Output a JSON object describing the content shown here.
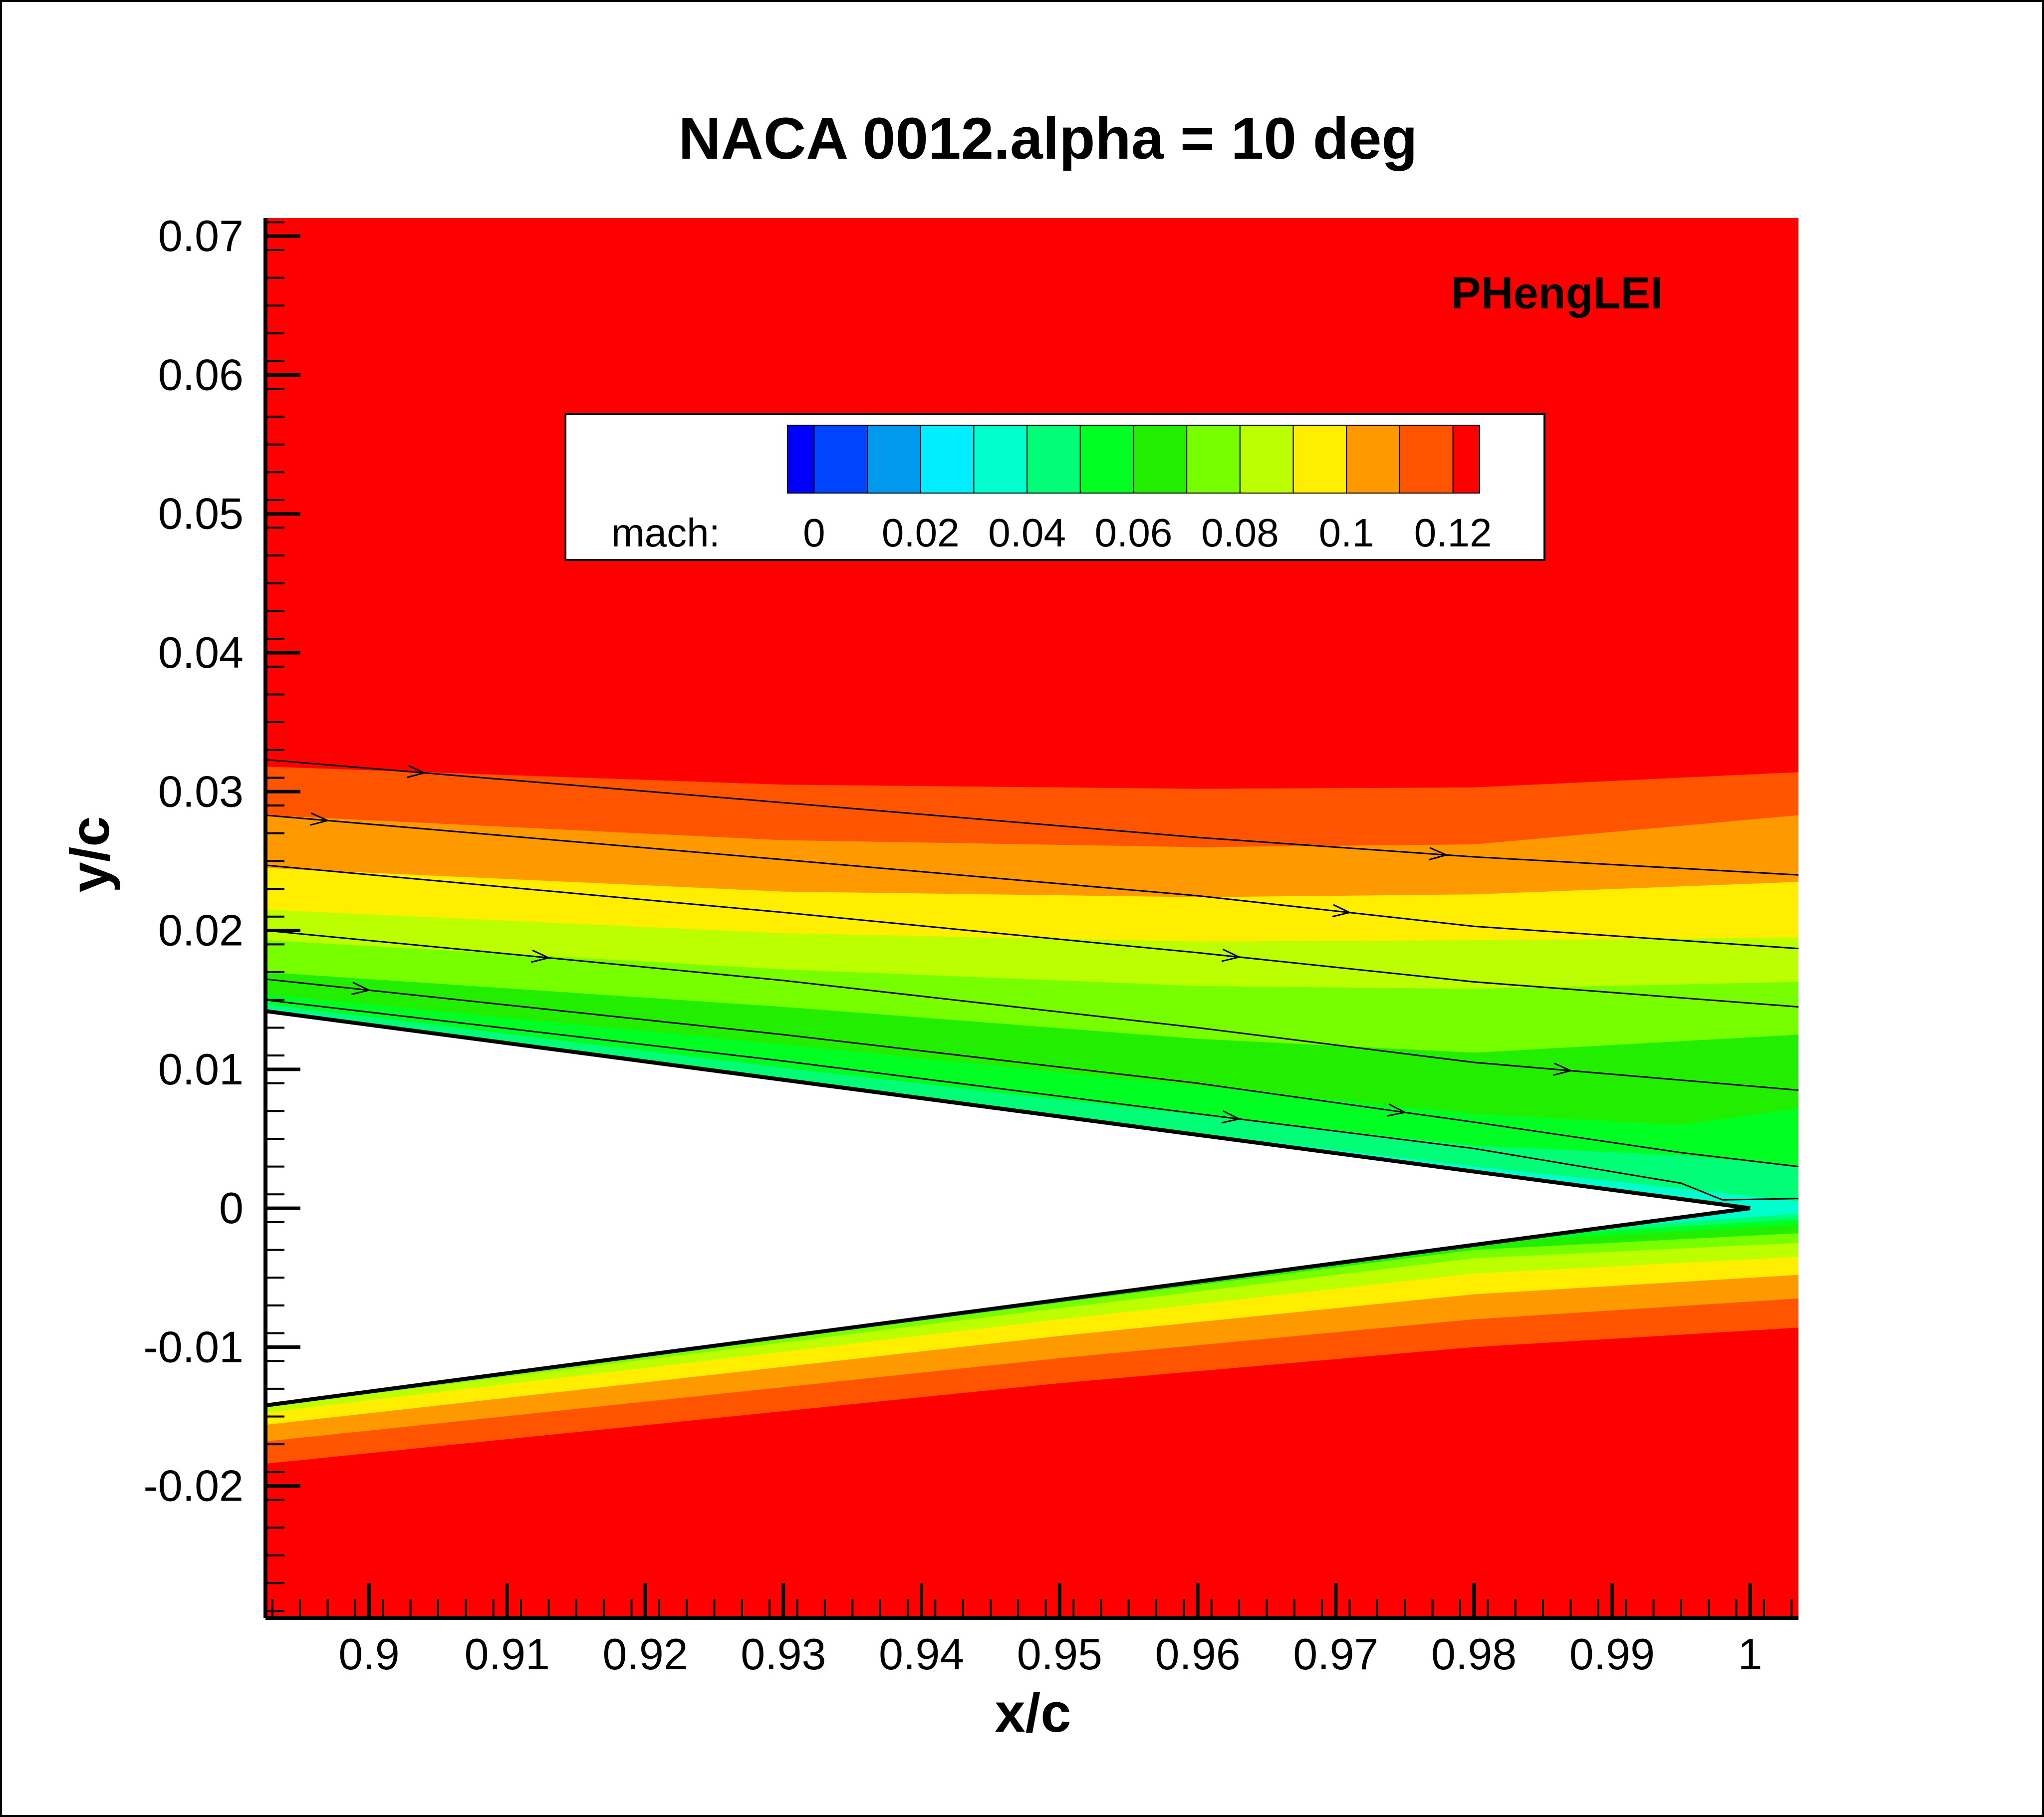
{
  "chart_data": {
    "type": "contour",
    "title": "NACA 0012.alpha = 10 deg",
    "xlabel": "x/c",
    "ylabel": "y/c",
    "xlim": [
      0.8925,
      1.0035
    ],
    "ylim": [
      -0.0295,
      0.0713
    ],
    "x_ticks": [
      {
        "value": 0.9,
        "label": "0.9"
      },
      {
        "value": 0.91,
        "label": "0.91"
      },
      {
        "value": 0.92,
        "label": "0.92"
      },
      {
        "value": 0.93,
        "label": "0.93"
      },
      {
        "value": 0.94,
        "label": "0.94"
      },
      {
        "value": 0.95,
        "label": "0.95"
      },
      {
        "value": 0.96,
        "label": "0.96"
      },
      {
        "value": 0.97,
        "label": "0.97"
      },
      {
        "value": 0.98,
        "label": "0.98"
      },
      {
        "value": 0.99,
        "label": "0.99"
      },
      {
        "value": 1.0,
        "label": "1"
      }
    ],
    "y_ticks": [
      {
        "value": -0.02,
        "label": "-0.02"
      },
      {
        "value": -0.01,
        "label": "-0.01"
      },
      {
        "value": 0.0,
        "label": "0"
      },
      {
        "value": 0.01,
        "label": "0.01"
      },
      {
        "value": 0.02,
        "label": "0.02"
      },
      {
        "value": 0.03,
        "label": "0.03"
      },
      {
        "value": 0.04,
        "label": "0.04"
      },
      {
        "value": 0.05,
        "label": "0.05"
      },
      {
        "value": 0.06,
        "label": "0.06"
      },
      {
        "value": 0.07,
        "label": "0.07"
      }
    ],
    "annotation": "PHengLEI",
    "colorbar": {
      "variable": "mach:",
      "levels": [
        -0.005,
        0.0,
        0.01,
        0.02,
        0.03,
        0.04,
        0.05,
        0.06,
        0.07,
        0.08,
        0.09,
        0.1,
        0.11,
        0.12,
        0.125
      ],
      "colors": [
        "#0000ff",
        "#0044ff",
        "#0099ee",
        "#00eeff",
        "#00ffcc",
        "#00ff77",
        "#00ff22",
        "#22ee00",
        "#77ff00",
        "#bbff00",
        "#ffee00",
        "#ff9900",
        "#ff5500",
        "#ff0000"
      ],
      "labels": [
        {
          "value": 0.0,
          "label": "0"
        },
        {
          "value": 0.02,
          "label": "0.02"
        },
        {
          "value": 0.04,
          "label": "0.04"
        },
        {
          "value": 0.06,
          "label": "0.06"
        },
        {
          "value": 0.08,
          "label": "0.08"
        },
        {
          "value": 0.1,
          "label": "0.1"
        },
        {
          "value": 0.12,
          "label": "0.12"
        }
      ]
    },
    "airfoil": {
      "upper_surface": [
        [
          0.8925,
          0.0142
        ],
        [
          1.0,
          0.0
        ]
      ],
      "lower_surface": [
        [
          0.8925,
          -0.0142
        ],
        [
          1.0,
          0.0
        ]
      ]
    },
    "contour_bands": [
      {
        "color": "#ff5500",
        "upper": [
          [
            0.8925,
            0.0318
          ],
          [
            0.93,
            0.0305
          ],
          [
            0.96,
            0.0302
          ],
          [
            0.98,
            0.0303
          ],
          [
            1.0035,
            0.0314
          ]
        ],
        "lower": [
          [
            0.8925,
            -0.0184
          ],
          [
            0.95,
            -0.0126
          ],
          [
            0.98,
            -0.01
          ],
          [
            1.0035,
            -0.0086
          ]
        ]
      },
      {
        "color": "#ff9900",
        "upper": [
          [
            0.8925,
            0.0283
          ],
          [
            0.93,
            0.0265
          ],
          [
            0.96,
            0.026
          ],
          [
            0.98,
            0.0262
          ],
          [
            1.0035,
            0.0283
          ]
        ],
        "lower": [
          [
            0.8925,
            -0.0168
          ],
          [
            0.95,
            -0.0108
          ],
          [
            0.98,
            -0.008
          ],
          [
            1.0035,
            -0.0065
          ]
        ]
      },
      {
        "color": "#ffee00",
        "upper": [
          [
            0.8925,
            0.0245
          ],
          [
            0.93,
            0.0228
          ],
          [
            0.96,
            0.0224
          ],
          [
            0.98,
            0.0226
          ],
          [
            1.0035,
            0.0235
          ]
        ],
        "lower": [
          [
            0.8925,
            -0.0156
          ],
          [
            0.95,
            -0.0092
          ],
          [
            0.98,
            -0.0062
          ],
          [
            1.0035,
            -0.0048
          ]
        ]
      },
      {
        "color": "#bbff00",
        "upper": [
          [
            0.8925,
            0.0215
          ],
          [
            0.93,
            0.0198
          ],
          [
            0.96,
            0.0192
          ],
          [
            0.98,
            0.0193
          ],
          [
            1.0035,
            0.0195
          ]
        ],
        "lower": [
          [
            0.8925,
            -0.0147
          ],
          [
            0.95,
            -0.008
          ],
          [
            0.98,
            -0.0047
          ],
          [
            1.0035,
            -0.0035
          ]
        ]
      },
      {
        "color": "#77ff00",
        "upper": [
          [
            0.8925,
            0.0193
          ],
          [
            0.93,
            0.0172
          ],
          [
            0.96,
            0.016
          ],
          [
            0.98,
            0.0158
          ],
          [
            1.0035,
            0.0163
          ]
        ],
        "lower": [
          [
            0.8925,
            -0.0143
          ],
          [
            0.95,
            -0.0072
          ],
          [
            0.98,
            -0.0036
          ],
          [
            1.0035,
            -0.0025
          ]
        ]
      },
      {
        "color": "#22ee00",
        "upper": [
          [
            0.8925,
            0.017
          ],
          [
            0.93,
            0.0145
          ],
          [
            0.96,
            0.0122
          ],
          [
            0.98,
            0.0112
          ],
          [
            1.0035,
            0.0125
          ]
        ],
        "lower": [
          [
            0.8925,
            -0.0142
          ],
          [
            0.95,
            -0.0068
          ],
          [
            0.98,
            -0.003
          ],
          [
            1.0035,
            -0.0018
          ]
        ]
      },
      {
        "color": "#00ff22",
        "upper": [
          [
            0.8925,
            0.0154
          ],
          [
            0.93,
            0.0118
          ],
          [
            0.96,
            0.0088
          ],
          [
            0.98,
            0.0068
          ],
          [
            0.995,
            0.006
          ],
          [
            1.0035,
            0.0072
          ]
        ],
        "lower": [
          [
            0.8925,
            -0.0142
          ],
          [
            0.95,
            -0.0065
          ],
          [
            0.98,
            -0.0025
          ],
          [
            1.0035,
            -0.0012
          ]
        ]
      },
      {
        "color": "#00ff77",
        "upper": [
          [
            0.8925,
            0.0147
          ],
          [
            0.93,
            0.0101
          ],
          [
            0.96,
            0.0067
          ],
          [
            0.98,
            0.0045
          ],
          [
            0.995,
            0.0038
          ],
          [
            1.0035,
            0.003
          ]
        ],
        "lower": [
          [
            0.8925,
            -0.0142
          ],
          [
            0.95,
            -0.0064
          ],
          [
            0.98,
            -0.0022
          ],
          [
            1.0035,
            -0.0008
          ]
        ]
      },
      {
        "color": "#00ffcc",
        "upper": [
          [
            0.8925,
            0.0144
          ],
          [
            0.93,
            0.0093
          ],
          [
            0.96,
            0.0054
          ],
          [
            0.98,
            0.003
          ],
          [
            0.997,
            0.0012
          ],
          [
            1.0035,
            0.0005
          ]
        ],
        "lower": [
          [
            0.8925,
            -0.0142
          ],
          [
            0.95,
            -0.0063
          ],
          [
            0.98,
            -0.002
          ],
          [
            1.0035,
            -0.0004
          ]
        ]
      },
      {
        "color": "#00eeff",
        "upper": [
          [
            0.8925,
            0.0143
          ],
          [
            0.93,
            0.009
          ],
          [
            0.96,
            0.0049
          ],
          [
            0.98,
            0.0022
          ],
          [
            1.0,
            0.0002
          ]
        ],
        "lower": [
          [
            0.8925,
            0.0143
          ],
          [
            1.0,
            0.0
          ]
        ]
      }
    ],
    "streamlines": [
      {
        "points": [
          [
            0.8925,
            0.0323
          ],
          [
            0.93,
            0.0292
          ],
          [
            0.96,
            0.0267
          ],
          [
            0.98,
            0.0253
          ],
          [
            1.0035,
            0.024
          ]
        ],
        "arrows_at_x": [
          0.904,
          0.978
        ]
      },
      {
        "points": [
          [
            0.8925,
            0.0283
          ],
          [
            0.93,
            0.0251
          ],
          [
            0.96,
            0.0225
          ],
          [
            0.98,
            0.0203
          ],
          [
            1.0035,
            0.0187
          ]
        ],
        "arrows_at_x": [
          0.897,
          0.971
        ]
      },
      {
        "points": [
          [
            0.8925,
            0.0247
          ],
          [
            0.93,
            0.0213
          ],
          [
            0.96,
            0.0184
          ],
          [
            0.98,
            0.0163
          ],
          [
            1.0035,
            0.0145
          ]
        ],
        "arrows_at_x": [
          0.963
        ]
      },
      {
        "points": [
          [
            0.8925,
            0.02
          ],
          [
            0.93,
            0.0164
          ],
          [
            0.96,
            0.013
          ],
          [
            0.98,
            0.0105
          ],
          [
            1.0035,
            0.0085
          ]
        ],
        "arrows_at_x": [
          0.913,
          0.987
        ]
      },
      {
        "points": [
          [
            0.8925,
            0.0165
          ],
          [
            0.93,
            0.0125
          ],
          [
            0.96,
            0.009
          ],
          [
            0.98,
            0.0062
          ],
          [
            0.995,
            0.004
          ],
          [
            1.0035,
            0.003
          ]
        ],
        "arrows_at_x": [
          0.9,
          0.975
        ]
      },
      {
        "points": [
          [
            0.8925,
            0.015
          ],
          [
            0.93,
            0.0106
          ],
          [
            0.96,
            0.0068
          ],
          [
            0.98,
            0.0043
          ],
          [
            0.995,
            0.0018
          ],
          [
            0.998,
            0.0006
          ],
          [
            1.0035,
            0.0007
          ]
        ],
        "arrows_at_x": [
          0.963
        ]
      }
    ],
    "colors": {
      "background": "#ff0000",
      "airfoil_fill": "#ffffff",
      "line": "#000000"
    }
  }
}
